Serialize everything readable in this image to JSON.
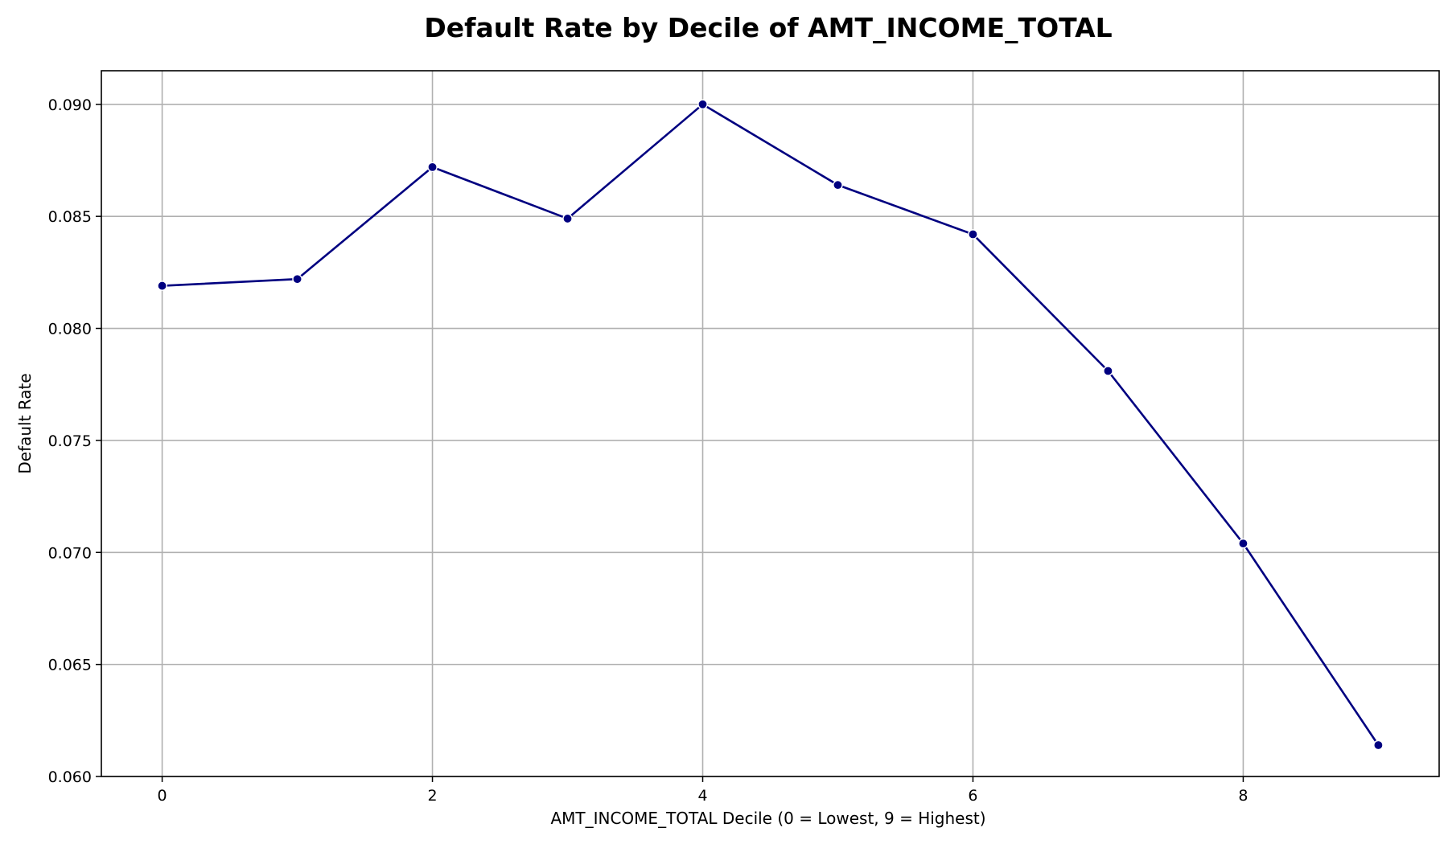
{
  "chart_data": {
    "type": "line",
    "title": "Default Rate by Decile of AMT_INCOME_TOTAL",
    "xlabel": "AMT_INCOME_TOTAL Decile (0 = Lowest, 9 = Highest)",
    "ylabel": "Default Rate",
    "x": [
      0,
      1,
      2,
      3,
      4,
      5,
      6,
      7,
      8,
      9
    ],
    "series": [
      {
        "values": [
          0.0819,
          0.0822,
          0.0872,
          0.0849,
          0.09,
          0.0864,
          0.0842,
          0.0781,
          0.0704,
          0.0614
        ],
        "color": "#000080",
        "marker": "circle"
      }
    ],
    "xlim": [
      -0.45,
      9.45
    ],
    "ylim": [
      0.06,
      0.0915
    ],
    "x_ticks": [
      0,
      2,
      4,
      6,
      8
    ],
    "x_tick_labels": [
      "0",
      "2",
      "4",
      "6",
      "8"
    ],
    "y_ticks": [
      0.06,
      0.065,
      0.07,
      0.075,
      0.08,
      0.085,
      0.09
    ],
    "y_tick_labels": [
      "0.060",
      "0.065",
      "0.070",
      "0.075",
      "0.080",
      "0.085",
      "0.090"
    ],
    "grid": true,
    "legend": false
  }
}
